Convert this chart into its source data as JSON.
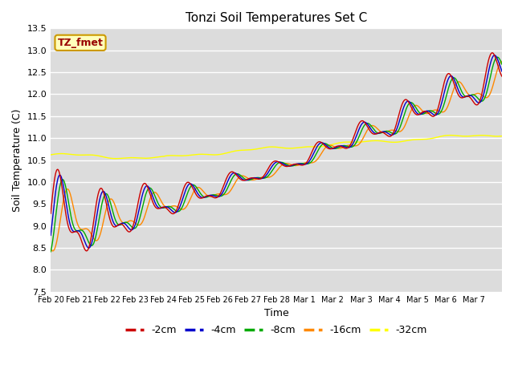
{
  "title": "Tonzi Soil Temperatures Set C",
  "xlabel": "Time",
  "ylabel": "Soil Temperature (C)",
  "ylim": [
    7.5,
    13.5
  ],
  "yticks": [
    7.5,
    8.0,
    8.5,
    9.0,
    9.5,
    10.0,
    10.5,
    11.0,
    11.5,
    12.0,
    12.5,
    13.0,
    13.5
  ],
  "line_colors": {
    "-2cm": "#cc0000",
    "-4cm": "#0000cc",
    "-8cm": "#00aa00",
    "-16cm": "#ff8800",
    "-32cm": "#ffff00"
  },
  "legend_labels": [
    "-2cm",
    "-4cm",
    "-8cm",
    "-16cm",
    "-32cm"
  ],
  "annotation_text": "TZ_fmet",
  "background_color": "#dcdcdc",
  "fig_background": "#ffffff",
  "xtick_labels": [
    "Feb 20",
    "Feb 21",
    "Feb 22",
    "Feb 23",
    "Feb 24",
    "Feb 25",
    "Feb 26",
    "Feb 27",
    "Feb 28",
    "Mar 1",
    "Mar 2",
    "Mar 3",
    "Mar 4",
    "Mar 5",
    "Mar 6",
    "Mar 7"
  ],
  "lw": 1.0
}
